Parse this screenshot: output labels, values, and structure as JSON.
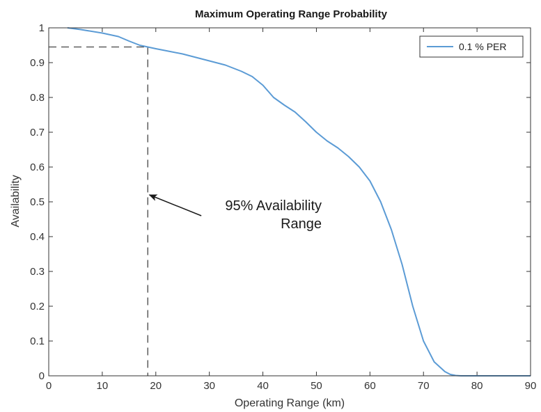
{
  "chart_data": {
    "type": "line",
    "title": "Maximum Operating Range Probability",
    "xlabel": "Operating Range (km)",
    "ylabel": "Availability",
    "xlim": [
      0,
      90
    ],
    "ylim": [
      0,
      1
    ],
    "xticks": [
      0,
      10,
      20,
      30,
      40,
      50,
      60,
      70,
      80,
      90
    ],
    "yticks": [
      0,
      0.1,
      0.2,
      0.3,
      0.4,
      0.5,
      0.6,
      0.7,
      0.8,
      0.9,
      1
    ],
    "ytick_labels": [
      "0",
      "0.1",
      "0.2",
      "0.3",
      "0.4",
      "0.5",
      "0.6",
      "0.7",
      "0.8",
      "0.9",
      "1"
    ],
    "grid": false,
    "legend": {
      "placement": "top-right",
      "entries": [
        "0.1 % PER"
      ]
    },
    "series": [
      {
        "name": "0.1 % PER",
        "color": "#5b9bd5",
        "x": [
          3.5,
          6,
          10,
          13,
          15,
          17,
          18.5,
          20,
          22,
          25,
          28,
          30,
          33,
          36,
          38,
          40,
          42,
          44,
          46,
          48,
          50,
          52,
          54,
          56,
          58,
          60,
          62,
          64,
          66,
          68,
          70,
          72,
          74,
          75,
          76,
          77,
          78,
          80,
          85,
          90
        ],
        "y": [
          1.0,
          0.995,
          0.985,
          0.975,
          0.962,
          0.95,
          0.945,
          0.94,
          0.934,
          0.925,
          0.913,
          0.905,
          0.893,
          0.875,
          0.86,
          0.835,
          0.8,
          0.778,
          0.758,
          0.73,
          0.7,
          0.675,
          0.655,
          0.63,
          0.6,
          0.56,
          0.5,
          0.42,
          0.32,
          0.2,
          0.1,
          0.04,
          0.012,
          0.004,
          0.001,
          0.0,
          0.0,
          0.0,
          0.0,
          0.0
        ]
      }
    ],
    "reference_lines": {
      "x": 18.5,
      "y": 0.945,
      "color": "#444444"
    },
    "annotation": {
      "lines": [
        "95% Availability",
        "Range"
      ],
      "arrow_from": [
        28.5,
        0.46
      ],
      "arrow_to": [
        18.8,
        0.52
      ]
    }
  }
}
